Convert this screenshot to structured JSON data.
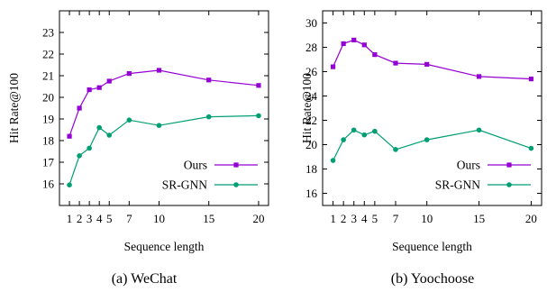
{
  "chart_data": [
    {
      "type": "line",
      "caption": "(a)  WeChat",
      "xlabel": "Sequence length",
      "ylabel": "Hit Rate@100",
      "xlim": [
        0,
        21
      ],
      "ylim": [
        15,
        24
      ],
      "xticks": [
        1,
        2,
        3,
        4,
        5,
        7,
        10,
        15,
        20
      ],
      "xtick_labels": [
        "1",
        "2",
        "3",
        "4",
        "5",
        "7",
        "10",
        "15",
        "20"
      ],
      "yticks": [
        16,
        17,
        18,
        19,
        20,
        21,
        22,
        23
      ],
      "legend_position": "bottom-right",
      "series": [
        {
          "name": "Ours",
          "color": "#9400d3",
          "marker": "square",
          "x": [
            1,
            2,
            3,
            4,
            5,
            7,
            10,
            15,
            20
          ],
          "y": [
            18.2,
            19.5,
            20.35,
            20.45,
            20.75,
            21.1,
            21.25,
            20.8,
            20.55
          ]
        },
        {
          "name": "SR-GNN",
          "color": "#009e73",
          "marker": "circle",
          "x": [
            1,
            2,
            3,
            4,
            5,
            7,
            10,
            15,
            20
          ],
          "y": [
            15.95,
            17.3,
            17.65,
            18.6,
            18.25,
            18.95,
            18.7,
            19.1,
            19.15
          ]
        }
      ]
    },
    {
      "type": "line",
      "caption": "(b)  Yoochoose",
      "xlabel": "Sequence length",
      "ylabel": "Hit Rate@100",
      "xlim": [
        0,
        21
      ],
      "ylim": [
        15,
        31
      ],
      "xticks": [
        1,
        2,
        3,
        4,
        5,
        7,
        10,
        15,
        20
      ],
      "xtick_labels": [
        "1",
        "2",
        "3",
        "4",
        "5",
        "7",
        "10",
        "15",
        "20"
      ],
      "yticks": [
        16,
        18,
        20,
        22,
        24,
        26,
        28,
        30
      ],
      "legend_position": "bottom-right",
      "series": [
        {
          "name": "Ours",
          "color": "#9400d3",
          "marker": "square",
          "x": [
            1,
            2,
            3,
            4,
            5,
            7,
            10,
            15,
            20
          ],
          "y": [
            26.4,
            28.3,
            28.6,
            28.2,
            27.4,
            26.7,
            26.6,
            25.6,
            25.4
          ]
        },
        {
          "name": "SR-GNN",
          "color": "#009e73",
          "marker": "circle",
          "x": [
            1,
            2,
            3,
            4,
            5,
            7,
            10,
            15,
            20
          ],
          "y": [
            18.7,
            20.4,
            21.2,
            20.8,
            21.1,
            19.6,
            20.4,
            21.2,
            19.7
          ]
        }
      ]
    }
  ]
}
